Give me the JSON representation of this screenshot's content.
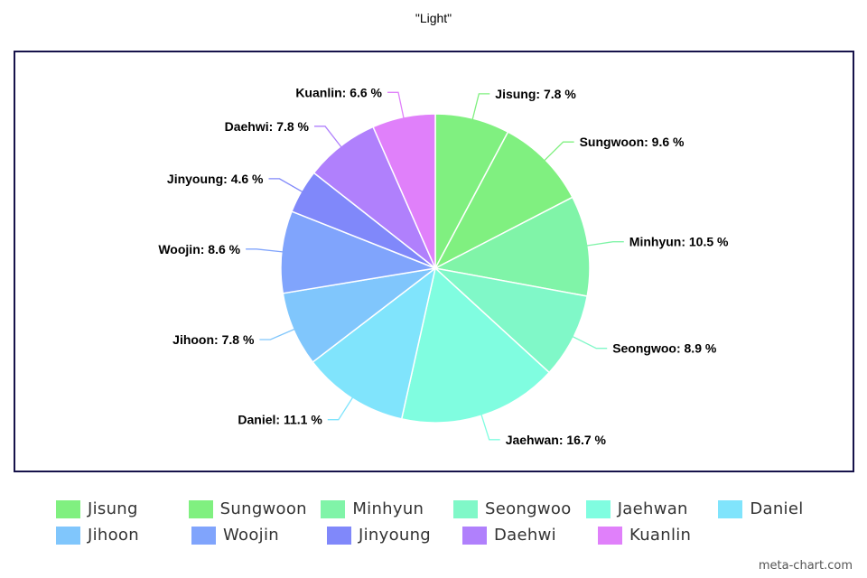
{
  "chart_data": {
    "type": "pie",
    "title": "\"Light\"",
    "label_format": "{name}: {value} %",
    "slices": [
      {
        "name": "Jisung",
        "value": 7.8,
        "color": "#80f080"
      },
      {
        "name": "Sungwoon",
        "value": 9.6,
        "color": "#80f080"
      },
      {
        "name": "Minhyun",
        "value": 10.5,
        "color": "#80f4a8"
      },
      {
        "name": "Seongwoo",
        "value": 8.9,
        "color": "#80f8c8"
      },
      {
        "name": "Jaehwan",
        "value": 16.7,
        "color": "#80fde0"
      },
      {
        "name": "Daniel",
        "value": 11.1,
        "color": "#80e4fc"
      },
      {
        "name": "Jihoon",
        "value": 7.8,
        "color": "#80c6fc"
      },
      {
        "name": "Woojin",
        "value": 8.6,
        "color": "#80a4fc"
      },
      {
        "name": "Jinyoung",
        "value": 4.6,
        "color": "#8088fa"
      },
      {
        "name": "Daehwi",
        "value": 7.8,
        "color": "#b080fc"
      },
      {
        "name": "Kuanlin",
        "value": 6.6,
        "color": "#e080fa"
      }
    ],
    "legend": {
      "placement": "bottom"
    }
  },
  "watermark": "meta-chart.com"
}
